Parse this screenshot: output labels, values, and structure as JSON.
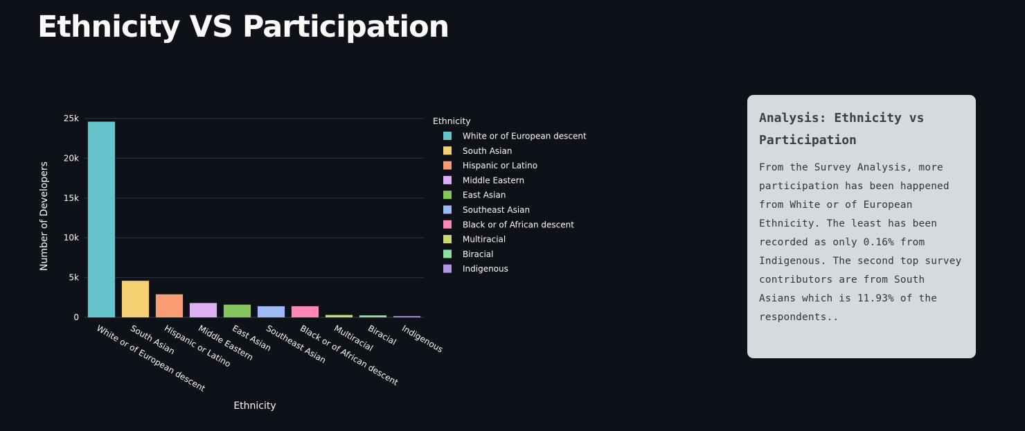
{
  "page": {
    "title": "Ethnicity VS Participation"
  },
  "analysis": {
    "title": "Analysis: Ethnicity vs Participation",
    "body": "From the Survey Analysis, more participation has been happened from White or of European Ethnicity. The least has been recorded as only 0.16% from Indigenous. The second top survey contributors are from South Asians which is 11.93% of the respondents.."
  },
  "chart_data": {
    "type": "bar",
    "xlabel": "Ethnicity",
    "ylabel": "Number of Developers",
    "ylim": [
      0,
      25000
    ],
    "yticks": [
      0,
      5000,
      10000,
      15000,
      20000,
      25000
    ],
    "ytick_labels": [
      "0",
      "5k",
      "10k",
      "15k",
      "20k",
      "25k"
    ],
    "grid": "horizontal",
    "legend_title": "Ethnicity",
    "legend_position": "right",
    "categories": [
      "White or of European descent",
      "South Asian",
      "Hispanic or Latino",
      "Middle Eastern",
      "East Asian",
      "Southeast Asian",
      "Black or of African descent",
      "Multiracial",
      "Biracial",
      "Indigenous"
    ],
    "values": [
      24600,
      4600,
      2900,
      1800,
      1600,
      1400,
      1400,
      300,
      250,
      150
    ],
    "colors": [
      "#66c5cc",
      "#f6cf71",
      "#f89c74",
      "#dcb0f2",
      "#87c55f",
      "#9eb9f3",
      "#fe88b1",
      "#c9db74",
      "#8be0a4",
      "#b497e7"
    ]
  }
}
